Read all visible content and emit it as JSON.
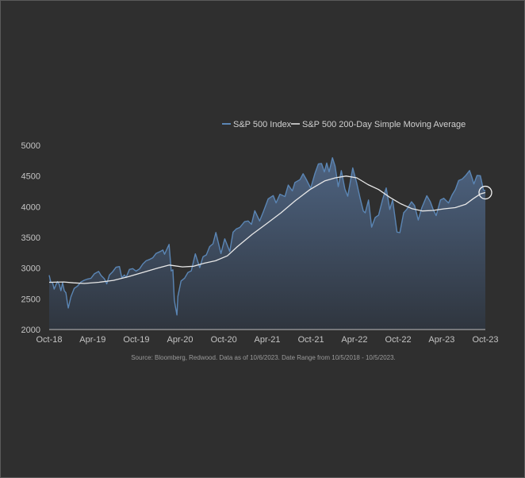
{
  "chart_data": {
    "type": "line",
    "title": "",
    "xlabel": "",
    "ylabel": "",
    "ylim": [
      2000,
      5000
    ],
    "xlim": [
      "2018-10-05",
      "2023-10-05"
    ],
    "grid": false,
    "legend_position": "top-right",
    "y_ticks": [
      "2000",
      "2500",
      "3000",
      "3500",
      "4000",
      "4500",
      "5000"
    ],
    "x_ticks": [
      {
        "label": "Oct-18",
        "date": "2018-10-05"
      },
      {
        "label": "Apr-19",
        "date": "2019-04-05"
      },
      {
        "label": "Oct-19",
        "date": "2019-10-05"
      },
      {
        "label": "Apr-20",
        "date": "2020-04-05"
      },
      {
        "label": "Oct-20",
        "date": "2020-10-05"
      },
      {
        "label": "Apr-21",
        "date": "2021-04-05"
      },
      {
        "label": "Oct-21",
        "date": "2021-10-05"
      },
      {
        "label": "Apr-22",
        "date": "2022-04-05"
      },
      {
        "label": "Oct-22",
        "date": "2022-10-05"
      },
      {
        "label": "Apr-23",
        "date": "2023-04-05"
      },
      {
        "label": "Oct-23",
        "date": "2023-10-05"
      }
    ],
    "series": [
      {
        "name": "S&P 500 Index",
        "color": "#5b86b5",
        "fill": true,
        "points": [
          [
            "2018-10-05",
            2885
          ],
          [
            "2018-10-12",
            2767
          ],
          [
            "2018-10-19",
            2767
          ],
          [
            "2018-10-26",
            2658
          ],
          [
            "2018-11-02",
            2723
          ],
          [
            "2018-11-09",
            2781
          ],
          [
            "2018-11-16",
            2736
          ],
          [
            "2018-11-23",
            2632
          ],
          [
            "2018-11-30",
            2760
          ],
          [
            "2018-12-07",
            2633
          ],
          [
            "2018-12-14",
            2599
          ],
          [
            "2018-12-21",
            2416
          ],
          [
            "2018-12-24",
            2351
          ],
          [
            "2019-01-04",
            2532
          ],
          [
            "2019-01-18",
            2670
          ],
          [
            "2019-02-01",
            2707
          ],
          [
            "2019-02-15",
            2775
          ],
          [
            "2019-03-01",
            2803
          ],
          [
            "2019-03-15",
            2822
          ],
          [
            "2019-03-29",
            2834
          ],
          [
            "2019-04-12",
            2907
          ],
          [
            "2019-04-30",
            2946
          ],
          [
            "2019-05-10",
            2881
          ],
          [
            "2019-05-24",
            2826
          ],
          [
            "2019-06-03",
            2744
          ],
          [
            "2019-06-14",
            2887
          ],
          [
            "2019-06-28",
            2942
          ],
          [
            "2019-07-12",
            3014
          ],
          [
            "2019-07-26",
            3026
          ],
          [
            "2019-08-05",
            2844
          ],
          [
            "2019-08-16",
            2889
          ],
          [
            "2019-08-23",
            2847
          ],
          [
            "2019-09-06",
            2979
          ],
          [
            "2019-09-20",
            2992
          ],
          [
            "2019-10-04",
            2952
          ],
          [
            "2019-10-18",
            2986
          ],
          [
            "2019-11-01",
            3067
          ],
          [
            "2019-11-15",
            3120
          ],
          [
            "2019-11-29",
            3141
          ],
          [
            "2019-12-13",
            3169
          ],
          [
            "2019-12-27",
            3240
          ],
          [
            "2020-01-10",
            3265
          ],
          [
            "2020-01-24",
            3295
          ],
          [
            "2020-01-31",
            3226
          ],
          [
            "2020-02-19",
            3386
          ],
          [
            "2020-02-28",
            2954
          ],
          [
            "2020-03-06",
            2972
          ],
          [
            "2020-03-12",
            2481
          ],
          [
            "2020-03-16",
            2386
          ],
          [
            "2020-03-23",
            2237
          ],
          [
            "2020-03-27",
            2541
          ],
          [
            "2020-04-09",
            2790
          ],
          [
            "2020-04-24",
            2837
          ],
          [
            "2020-05-08",
            2930
          ],
          [
            "2020-05-22",
            2955
          ],
          [
            "2020-06-08",
            3232
          ],
          [
            "2020-06-26",
            3009
          ],
          [
            "2020-07-10",
            3185
          ],
          [
            "2020-07-24",
            3216
          ],
          [
            "2020-08-07",
            3351
          ],
          [
            "2020-08-21",
            3397
          ],
          [
            "2020-09-02",
            3580
          ],
          [
            "2020-09-23",
            3237
          ],
          [
            "2020-10-09",
            3477
          ],
          [
            "2020-10-30",
            3270
          ],
          [
            "2020-11-13",
            3585
          ],
          [
            "2020-11-27",
            3638
          ],
          [
            "2020-12-11",
            3663
          ],
          [
            "2020-12-31",
            3756
          ],
          [
            "2021-01-15",
            3768
          ],
          [
            "2021-01-29",
            3714
          ],
          [
            "2021-02-12",
            3934
          ],
          [
            "2021-03-04",
            3768
          ],
          [
            "2021-03-19",
            3913
          ],
          [
            "2021-04-09",
            4129
          ],
          [
            "2021-04-30",
            4181
          ],
          [
            "2021-05-12",
            4063
          ],
          [
            "2021-05-28",
            4204
          ],
          [
            "2021-06-18",
            4166
          ],
          [
            "2021-07-02",
            4352
          ],
          [
            "2021-07-19",
            4258
          ],
          [
            "2021-07-30",
            4395
          ],
          [
            "2021-08-20",
            4442
          ],
          [
            "2021-09-02",
            4537
          ],
          [
            "2021-09-17",
            4432
          ],
          [
            "2021-10-04",
            4300
          ],
          [
            "2021-10-22",
            4545
          ],
          [
            "2021-11-05",
            4697
          ],
          [
            "2021-11-18",
            4704
          ],
          [
            "2021-11-30",
            4567
          ],
          [
            "2021-12-10",
            4712
          ],
          [
            "2021-12-20",
            4568
          ],
          [
            "2022-01-03",
            4797
          ],
          [
            "2022-01-14",
            4663
          ],
          [
            "2022-01-27",
            4326
          ],
          [
            "2022-02-09",
            4587
          ],
          [
            "2022-02-24",
            4288
          ],
          [
            "2022-03-08",
            4171
          ],
          [
            "2022-03-29",
            4632
          ],
          [
            "2022-04-14",
            4392
          ],
          [
            "2022-04-29",
            4132
          ],
          [
            "2022-05-12",
            3930
          ],
          [
            "2022-05-20",
            3901
          ],
          [
            "2022-06-03",
            4109
          ],
          [
            "2022-06-16",
            3667
          ],
          [
            "2022-07-01",
            3825
          ],
          [
            "2022-07-15",
            3863
          ],
          [
            "2022-08-01",
            4119
          ],
          [
            "2022-08-16",
            4305
          ],
          [
            "2022-08-31",
            3955
          ],
          [
            "2022-09-12",
            4110
          ],
          [
            "2022-09-30",
            3586
          ],
          [
            "2022-10-12",
            3577
          ],
          [
            "2022-10-28",
            3901
          ],
          [
            "2022-11-10",
            3956
          ],
          [
            "2022-11-30",
            4080
          ],
          [
            "2022-12-13",
            4019
          ],
          [
            "2022-12-28",
            3783
          ],
          [
            "2023-01-12",
            3983
          ],
          [
            "2023-02-02",
            4179
          ],
          [
            "2023-02-17",
            4079
          ],
          [
            "2023-03-01",
            3951
          ],
          [
            "2023-03-13",
            3855
          ],
          [
            "2023-03-31",
            4109
          ],
          [
            "2023-04-14",
            4137
          ],
          [
            "2023-05-04",
            4061
          ],
          [
            "2023-05-19",
            4192
          ],
          [
            "2023-06-02",
            4282
          ],
          [
            "2023-06-15",
            4426
          ],
          [
            "2023-06-30",
            4450
          ],
          [
            "2023-07-14",
            4505
          ],
          [
            "2023-07-31",
            4589
          ],
          [
            "2023-08-11",
            4464
          ],
          [
            "2023-08-18",
            4370
          ],
          [
            "2023-08-31",
            4508
          ],
          [
            "2023-09-14",
            4505
          ],
          [
            "2023-09-27",
            4274
          ],
          [
            "2023-10-05",
            4258
          ]
        ]
      },
      {
        "name": "S&P 500 200-Day Simple Moving Average",
        "color": "#e8e8e8",
        "fill": false,
        "points": [
          [
            "2018-10-05",
            2770
          ],
          [
            "2018-12-05",
            2775
          ],
          [
            "2019-01-15",
            2760
          ],
          [
            "2019-03-01",
            2750
          ],
          [
            "2019-05-01",
            2770
          ],
          [
            "2019-07-01",
            2800
          ],
          [
            "2019-09-01",
            2860
          ],
          [
            "2019-11-01",
            2930
          ],
          [
            "2020-01-01",
            3000
          ],
          [
            "2020-02-20",
            3050
          ],
          [
            "2020-04-15",
            3020
          ],
          [
            "2020-06-01",
            3030
          ],
          [
            "2020-07-15",
            3080
          ],
          [
            "2020-09-01",
            3120
          ],
          [
            "2020-10-20",
            3200
          ],
          [
            "2020-12-01",
            3350
          ],
          [
            "2021-02-01",
            3550
          ],
          [
            "2021-04-01",
            3720
          ],
          [
            "2021-06-01",
            3900
          ],
          [
            "2021-08-01",
            4100
          ],
          [
            "2021-10-01",
            4280
          ],
          [
            "2021-12-01",
            4420
          ],
          [
            "2022-01-15",
            4470
          ],
          [
            "2022-03-01",
            4500
          ],
          [
            "2022-04-15",
            4470
          ],
          [
            "2022-06-01",
            4360
          ],
          [
            "2022-07-15",
            4280
          ],
          [
            "2022-09-01",
            4150
          ],
          [
            "2022-10-15",
            4050
          ],
          [
            "2022-12-01",
            3970
          ],
          [
            "2023-01-15",
            3930
          ],
          [
            "2023-03-01",
            3940
          ],
          [
            "2023-04-15",
            3965
          ],
          [
            "2023-06-01",
            3985
          ],
          [
            "2023-07-15",
            4040
          ],
          [
            "2023-08-15",
            4130
          ],
          [
            "2023-09-15",
            4210
          ],
          [
            "2023-10-05",
            4230
          ]
        ]
      }
    ],
    "annotations": [
      {
        "type": "circle",
        "date": "2023-10-05",
        "value": 4230
      }
    ],
    "source_note": "Source: Bloomberg, Redwood. Data as of 10/6/2023. Date Range from 10/5/2018 - 10/5/2023."
  }
}
